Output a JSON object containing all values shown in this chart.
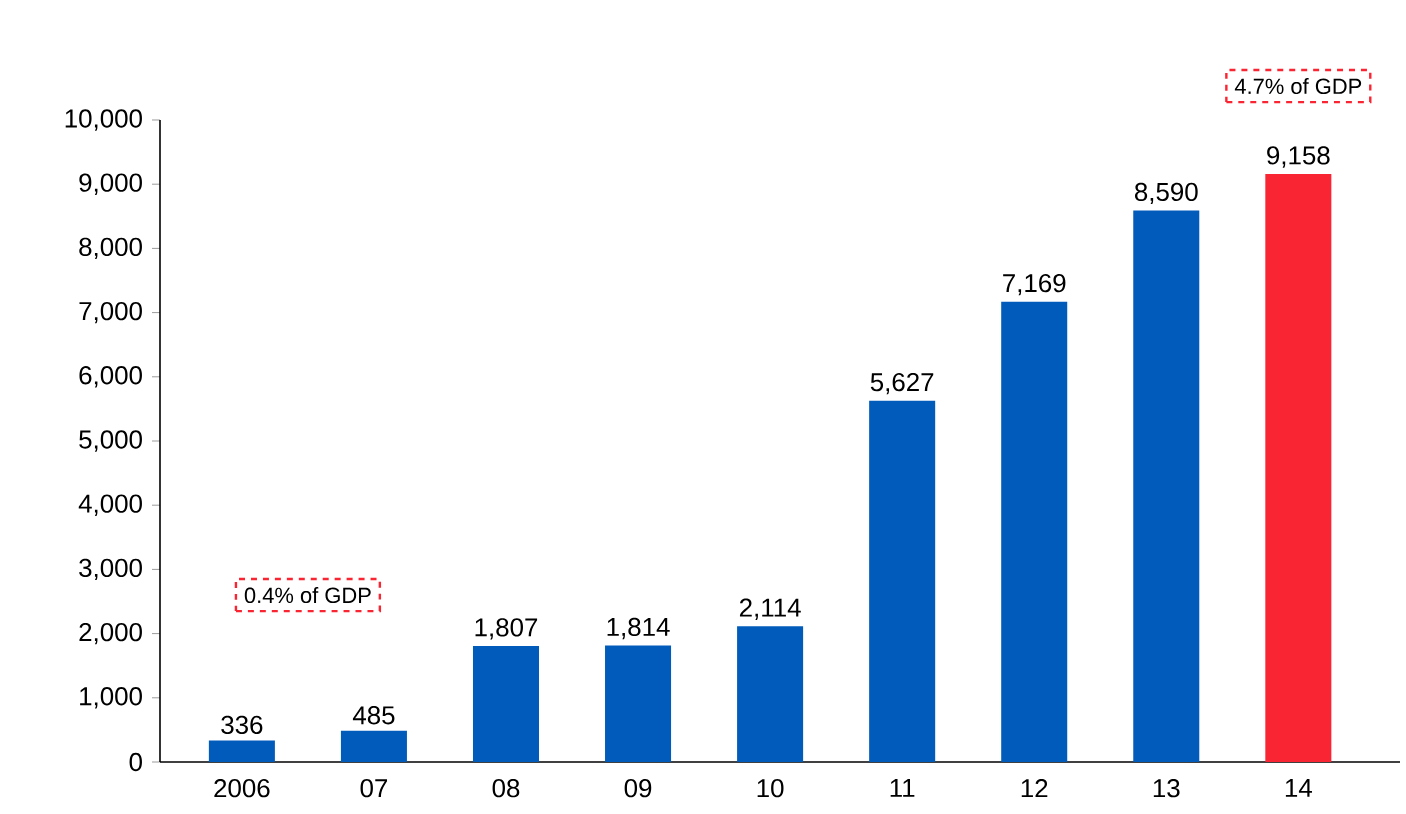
{
  "chart_data": {
    "type": "bar",
    "categories": [
      "2006",
      "07",
      "08",
      "09",
      "10",
      "11",
      "12",
      "13",
      "14"
    ],
    "values": [
      336,
      485,
      1807,
      1814,
      2114,
      5627,
      7169,
      8590,
      9158
    ],
    "colors": [
      "#005bbb",
      "#005bbb",
      "#005bbb",
      "#005bbb",
      "#005bbb",
      "#005bbb",
      "#005bbb",
      "#005bbb",
      "#fa2533"
    ],
    "value_labels": [
      "336",
      "485",
      "1,807",
      "1,814",
      "2,114",
      "5,627",
      "7,169",
      "8,590",
      "9,158"
    ],
    "ylim": [
      0,
      10000
    ],
    "yticks": [
      0,
      {
        "value": 1000,
        "label": "1,000"
      },
      {
        "value": 2000,
        "label": "2,000"
      },
      {
        "value": 3000,
        "label": "3,000"
      },
      {
        "value": 4000,
        "label": "4,000"
      },
      {
        "value": 5000,
        "label": "5,000"
      },
      {
        "value": 6000,
        "label": "6,000"
      },
      {
        "value": 7000,
        "label": "7,000"
      },
      {
        "value": 8000,
        "label": "8,000"
      },
      {
        "value": 9000,
        "label": "9,000"
      },
      {
        "value": 10000,
        "label": "10,000"
      }
    ],
    "annotations": [
      "0.4% of GDP",
      "4.7% of GDP"
    ],
    "grid": false
  }
}
